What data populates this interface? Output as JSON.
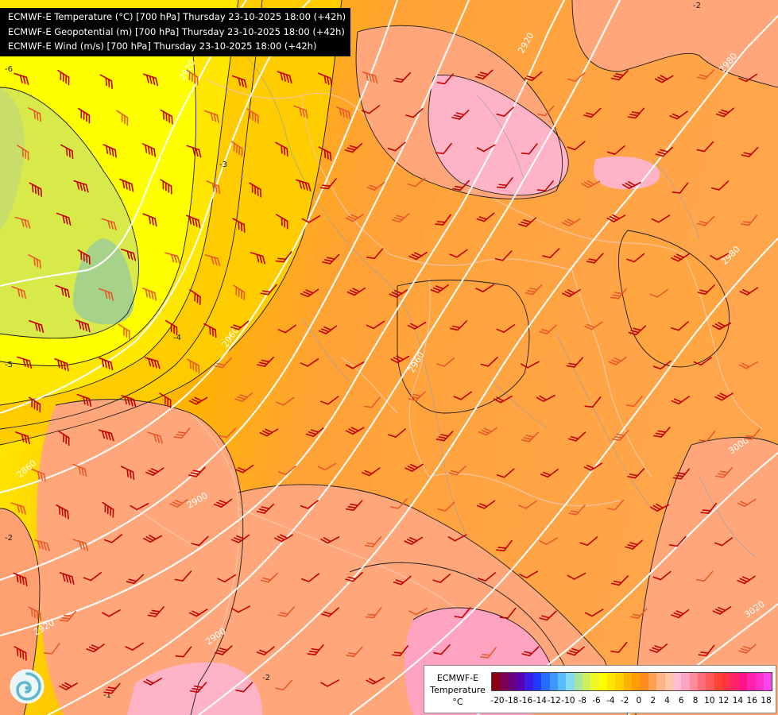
{
  "titles": [
    "ECMWF-E Temperature (°C) [700 hPa] Thursday 23-10-2025 18:00 (+42h)",
    "ECMWF-E Geopotential (m) [700 hPa] Thursday 23-10-2025 18:00 (+42h)",
    "ECMWF-E Wind (m/s) [700 hPa] Thursday 23-10-2025 18:00 (+42h)"
  ],
  "legend": {
    "model": "ECMWF-E",
    "variable": "Temperature",
    "unit": "°C",
    "ticks": [
      "-20",
      "-18",
      "-16",
      "-14",
      "-12",
      "-10",
      "-8",
      "-6",
      "-4",
      "-2",
      "0",
      "2",
      "4",
      "6",
      "8",
      "10",
      "12",
      "14",
      "16",
      "18"
    ],
    "colors": [
      "#8b0013",
      "#7c0052",
      "#68007f",
      "#5a00b3",
      "#3a1de6",
      "#1f3cff",
      "#2a6bff",
      "#3e96ff",
      "#58bcff",
      "#83d9ee",
      "#a8e69a",
      "#cdf05a",
      "#eef825",
      "#ffff00",
      "#ffe700",
      "#ffd000",
      "#ffb300",
      "#ff9a00",
      "#ff8a1e",
      "#ffa050",
      "#ffb486",
      "#ffc6a8",
      "#ffbfd2",
      "#ffa3c0",
      "#ff8a9a",
      "#ff6f7a",
      "#ff5a5a",
      "#ff4433",
      "#ff3344",
      "#ff2266",
      "#ff1188",
      "#ff22aa",
      "#ff33cc",
      "#ff44ee"
    ]
  },
  "isolines": {
    "geopotential": [
      "2920",
      "2920",
      "2960",
      "2980",
      "2980",
      "3000",
      "3020",
      "2860",
      "2900",
      "2920",
      "2960",
      "2900"
    ],
    "temperature": [
      "-3",
      "-4",
      "-5",
      "-6",
      "-2",
      "-1",
      "-2",
      "-2"
    ]
  },
  "colors": {
    "yellow_green": "#c9de6a",
    "green": "#a7d28a",
    "yellow": "#ffff00",
    "orange": "#ffa64d",
    "salmon": "#ffa77a",
    "pink": "#ffb3c6",
    "barb": "#cc0000"
  }
}
